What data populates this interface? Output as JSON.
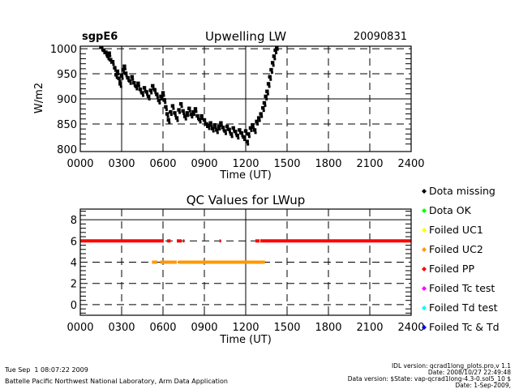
{
  "chart_data": [
    {
      "type": "scatter",
      "site": "sgpE6",
      "title": "Upwelling LW",
      "date": "20090831",
      "xlabel": "Time (UT)",
      "ylabel": "W/m2",
      "xlim": [
        0,
        24
      ],
      "ylim": [
        795,
        1005
      ],
      "xtick_labels": [
        "0000",
        "0300",
        "0600",
        "0900",
        "1200",
        "1500",
        "1800",
        "2100",
        "2400"
      ],
      "ytick_labels": [
        "800",
        "850",
        "900",
        "950",
        "1000"
      ],
      "ytick_values": [
        800,
        850,
        900,
        950,
        1000
      ],
      "solid_gridlines_y": [
        900
      ],
      "dashed_gridlines_y": [
        850,
        950,
        1000
      ],
      "dashed_gridlines_x": [
        6,
        9,
        15,
        18,
        21
      ],
      "solid_gridlines_x": [
        3,
        12
      ],
      "series": [
        {
          "name": "LWup",
          "color": "#000000",
          "points": [
            [
              1.4,
              1008
            ],
            [
              1.55,
              1003
            ],
            [
              1.7,
              997
            ],
            [
              1.85,
              993
            ],
            [
              2.0,
              985
            ],
            [
              2.1,
              991
            ],
            [
              2.2,
              978
            ],
            [
              2.35,
              974
            ],
            [
              2.5,
              962
            ],
            [
              2.6,
              948
            ],
            [
              2.7,
              955
            ],
            [
              2.8,
              941
            ],
            [
              2.9,
              930
            ],
            [
              3.0,
              946
            ],
            [
              3.1,
              958
            ],
            [
              3.2,
              965
            ],
            [
              3.3,
              951
            ],
            [
              3.45,
              942
            ],
            [
              3.6,
              936
            ],
            [
              3.75,
              944
            ],
            [
              3.9,
              932
            ],
            [
              4.05,
              925
            ],
            [
              4.2,
              931
            ],
            [
              4.35,
              919
            ],
            [
              4.5,
              912
            ],
            [
              4.65,
              922
            ],
            [
              4.8,
              914
            ],
            [
              4.95,
              905
            ],
            [
              5.1,
              917
            ],
            [
              5.25,
              926
            ],
            [
              5.4,
              918
            ],
            [
              5.55,
              909
            ],
            [
              5.7,
              897
            ],
            [
              5.85,
              905
            ],
            [
              6.0,
              912
            ],
            [
              6.1,
              898
            ],
            [
              6.2,
              884
            ],
            [
              6.3,
              870
            ],
            [
              6.4,
              858
            ],
            [
              6.55,
              874
            ],
            [
              6.7,
              886
            ],
            [
              6.85,
              872
            ],
            [
              7.0,
              862
            ],
            [
              7.15,
              878
            ],
            [
              7.3,
              890
            ],
            [
              7.45,
              876
            ],
            [
              7.6,
              865
            ],
            [
              7.75,
              872
            ],
            [
              7.9,
              881
            ],
            [
              8.05,
              869
            ],
            [
              8.2,
              874
            ],
            [
              8.35,
              880
            ],
            [
              8.5,
              866
            ],
            [
              8.65,
              859
            ],
            [
              8.8,
              866
            ],
            [
              9.0,
              858
            ],
            [
              9.15,
              850
            ],
            [
              9.3,
              846
            ],
            [
              9.45,
              852
            ],
            [
              9.6,
              841
            ],
            [
              9.75,
              848
            ],
            [
              9.9,
              838
            ],
            [
              10.05,
              845
            ],
            [
              10.2,
              852
            ],
            [
              10.35,
              843
            ],
            [
              10.5,
              836
            ],
            [
              10.65,
              845
            ],
            [
              10.8,
              839
            ],
            [
              10.95,
              830
            ],
            [
              11.1,
              842
            ],
            [
              11.25,
              835
            ],
            [
              11.4,
              827
            ],
            [
              11.55,
              838
            ],
            [
              11.7,
              832
            ],
            [
              11.85,
              824
            ],
            [
              12.0,
              836
            ],
            [
              12.1,
              815
            ],
            [
              12.2,
              830
            ],
            [
              12.35,
              842
            ],
            [
              12.5,
              848
            ],
            [
              12.65,
              838
            ],
            [
              12.8,
              855
            ],
            [
              12.95,
              862
            ],
            [
              13.1,
              870
            ],
            [
              13.25,
              882
            ],
            [
              13.35,
              892
            ],
            [
              13.45,
              905
            ],
            [
              13.55,
              915
            ],
            [
              13.65,
              930
            ],
            [
              13.75,
              944
            ],
            [
              13.85,
              958
            ],
            [
              13.95,
              972
            ],
            [
              14.05,
              985
            ],
            [
              14.15,
              997
            ],
            [
              14.25,
              1004
            ]
          ]
        }
      ]
    },
    {
      "type": "line",
      "title": "QC Values for LWup",
      "xlabel": "Time (UT)",
      "ylabel": "",
      "xlim": [
        0,
        24
      ],
      "ylim": [
        -1,
        9
      ],
      "xtick_labels": [
        "0000",
        "0300",
        "0600",
        "0900",
        "1200",
        "1500",
        "1800",
        "2100",
        "2400"
      ],
      "ytick_labels": [
        "0",
        "2",
        "4",
        "6",
        "8"
      ],
      "ytick_values": [
        0,
        2,
        4,
        6,
        8
      ],
      "solid_gridlines_y": [
        8
      ],
      "dashed_gridlines_y": [
        0,
        2,
        4,
        6
      ],
      "dashed_gridlines_x": [
        3,
        6,
        9,
        15,
        18,
        21
      ],
      "solid_gridlines_x": [
        12
      ],
      "series": [
        {
          "name": "Failed PP",
          "value": 6,
          "color": "#ff0000",
          "segments": [
            [
              0,
              6.05
            ],
            [
              6.3,
              6.55
            ],
            [
              7.0,
              7.35
            ],
            [
              7.45,
              7.55
            ],
            [
              10.1,
              10.2
            ],
            [
              12.7,
              13.0
            ],
            [
              13.05,
              24
            ]
          ]
        },
        {
          "name": "Failed UC2",
          "value": 4,
          "color": "#ff9900",
          "segments": [
            [
              5.2,
              5.6
            ],
            [
              5.8,
              7.0
            ],
            [
              7.1,
              13.4
            ]
          ]
        }
      ],
      "legend": [
        {
          "label": "Dota missing",
          "color": "#000000"
        },
        {
          "label": "Dota OK",
          "color": "#00ff00"
        },
        {
          "label": "Foiled UC1",
          "color": "#ffff00"
        },
        {
          "label": "Foiled UC2",
          "color": "#ff9900"
        },
        {
          "label": "Foiled PP",
          "color": "#ff0000"
        },
        {
          "label": "Foiled Tc test",
          "color": "#ff00ff"
        },
        {
          "label": "Foiled Td test",
          "color": "#00ffff"
        },
        {
          "label": "Foiled Tc & Td",
          "color": "#0000ff"
        }
      ],
      "legend_position": "right"
    }
  ],
  "footer": {
    "timestamp": "Tue Sep  1 08:07:22 2009",
    "organization": "Battelle Pacific Northwest National Laboratory, Arm Data Application",
    "idl_version": "IDL version: qcrad1long_plots.pro,v 1.1",
    "idl_date": "Date: 2008/10/27 22:49:48",
    "data_version": "Data version: $State: vap-qcrad1long-4.3-0.sol5_10 $",
    "data_date": "Date: 1-Sep-2009,"
  }
}
